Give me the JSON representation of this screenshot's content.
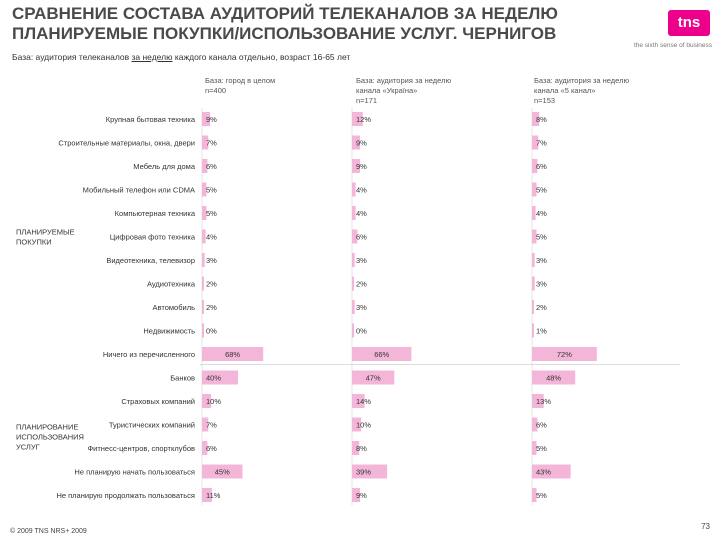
{
  "header": {
    "title_line1": "СРАВНЕНИЕ СОСТАВА АУДИТОРИЙ ТЕЛЕКАНАЛОВ ЗА НЕДЕЛЮ",
    "title_line2": "ПЛАНИРУЕМЫЕ ПОКУПКИ/ИСПОЛЬЗОВАНИЕ УСЛУГ. ЧЕРНИГОВ",
    "logo_text": "tns",
    "tagline": "the sixth sense of business"
  },
  "base": {
    "prefix": "База: аудитория телеканалов ",
    "underlined": "за неделю",
    "suffix": " каждого канала отдельно, возраст 16-65 лет"
  },
  "columns": [
    {
      "line1": "База: город в целом",
      "line2": "n=400",
      "line3": ""
    },
    {
      "line1": "База: аудитория за неделю",
      "line2": "канала «Україна»",
      "line3": "n=171"
    },
    {
      "line1": "База: аудитория за неделю",
      "line2": "канала «5 канал»",
      "line3": "n=153"
    }
  ],
  "footer": {
    "copyright": "© 2009 TNS   NRS+ 2009",
    "page": "73"
  },
  "colors": {
    "bar": "#f4b6d8",
    "text": "#333333"
  },
  "chart_data": {
    "type": "bar",
    "orientation": "horizontal",
    "unit": "%",
    "series": [
      {
        "name": "Город в целом"
      },
      {
        "name": "Україна"
      },
      {
        "name": "5 канал"
      }
    ],
    "groups": [
      {
        "label": "ПЛАНИРУЕМЫЕ ПОКУПКИ",
        "label_lines": [
          "ПЛАНИРУЕМЫЕ",
          "ПОКУПКИ"
        ],
        "first": 0,
        "last": 10
      },
      {
        "label": "ПЛАНИРОВАНИЕ ИСПОЛЬЗОВАНИЯ УСЛУГ",
        "label_lines": [
          "ПЛАНИРОВАНИЕ",
          "ИСПОЛЬЗОВАНИЯ",
          "УСЛУГ"
        ],
        "first": 11,
        "last": 16
      }
    ],
    "rows": [
      {
        "label": "Крупная бытовая техника",
        "values": [
          9,
          12,
          8
        ]
      },
      {
        "label": "Строительные материалы, окна, двери",
        "values": [
          7,
          9,
          7
        ]
      },
      {
        "label": "Мебель для дома",
        "values": [
          6,
          9,
          6
        ]
      },
      {
        "label": "Мобильный телефон или CDMA",
        "values": [
          5,
          4,
          5
        ]
      },
      {
        "label": "Компьютерная техника",
        "values": [
          5,
          4,
          4
        ]
      },
      {
        "label": "Цифровая фото техника",
        "values": [
          4,
          6,
          5
        ]
      },
      {
        "label": "Видеотехника, телевизор",
        "values": [
          3,
          3,
          3
        ]
      },
      {
        "label": "Аудиотехника",
        "values": [
          2,
          2,
          3
        ]
      },
      {
        "label": "Автомобиль",
        "values": [
          2,
          3,
          2
        ]
      },
      {
        "label": "Недвижимость",
        "values": [
          0,
          0,
          1
        ]
      },
      {
        "label": "Ничего из перечисленного",
        "values": [
          68,
          66,
          72
        ]
      },
      {
        "label": "Банков",
        "values": [
          40,
          47,
          48
        ]
      },
      {
        "label": "Страховых компаний",
        "values": [
          10,
          14,
          13
        ]
      },
      {
        "label": "Туристических компаний",
        "values": [
          7,
          10,
          6
        ]
      },
      {
        "label": "Фитнесс-центров, спортклубов",
        "values": [
          6,
          8,
          5
        ]
      },
      {
        "label": "Не планирую начать пользоваться",
        "values": [
          45,
          39,
          43
        ]
      },
      {
        "label": "Не планирую продолжать пользоваться",
        "values": [
          11,
          9,
          5
        ]
      }
    ]
  }
}
